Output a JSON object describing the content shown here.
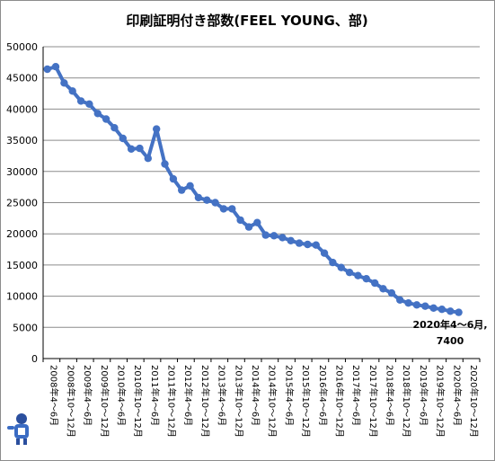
{
  "chart_data": {
    "type": "line",
    "title": "印刷証明付き部数(FEEL YOUNG、部)",
    "xlabel": "",
    "ylabel": "",
    "ylim": [
      0,
      50000
    ],
    "y_ticks": [
      "0",
      "5000",
      "10000",
      "15000",
      "20000",
      "25000",
      "30000",
      "35000",
      "40000",
      "45000",
      "50000"
    ],
    "grid": true,
    "legend": "none",
    "line_color": "#4472C4",
    "x_tick_labels": [
      "2008年4〜6月",
      "2008年10〜12月",
      "2009年4〜6月",
      "2009年10〜12月",
      "2010年4〜6月",
      "2010年10〜12月",
      "2011年4〜6月",
      "2011年10〜12月",
      "2012年4〜6月",
      "2012年10〜12月",
      "2013年4〜6月",
      "2013年10〜12月",
      "2014年4〜6月",
      "2014年10〜12月",
      "2015年4〜6月",
      "2015年10〜12月",
      "2016年4〜6月",
      "2016年10〜12月",
      "2017年4〜6月",
      "2017年10〜12月",
      "2018年4〜6月",
      "2018年10〜12月",
      "2019年4〜6月",
      "2019年10〜12月",
      "2020年4〜6月",
      "2020年10〜12月"
    ],
    "series": [
      {
        "values": [
          46400,
          46800,
          44200,
          42900,
          41300,
          40800,
          39300,
          38400,
          37000,
          35300,
          33600,
          33700,
          32100,
          36800,
          31200,
          28800,
          27000,
          27700,
          25800,
          25400,
          25000,
          24000,
          24000,
          22200,
          21100,
          21800,
          19800,
          19700,
          19400,
          18900,
          18500,
          18300,
          18200,
          16900,
          15400,
          14600,
          13800,
          13300,
          12800,
          12100,
          11200,
          10500,
          9400,
          8900,
          8600,
          8400,
          8100,
          7900,
          7600,
          7400
        ]
      }
    ],
    "annotation": {
      "line1": "2020年4〜6月,",
      "line2": "7400",
      "point_index": 49
    }
  }
}
